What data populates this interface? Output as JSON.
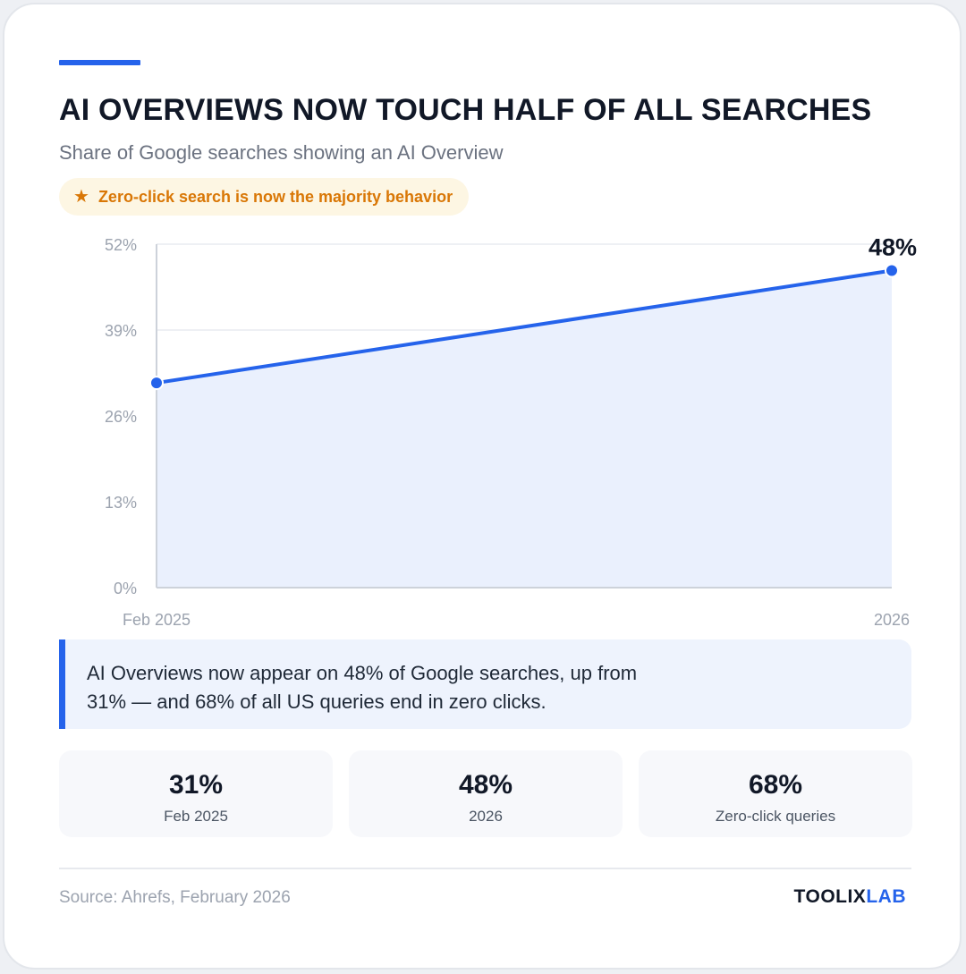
{
  "header": {
    "title": "AI OVERVIEWS NOW TOUCH HALF OF ALL SEARCHES",
    "subtitle": "Share of Google searches showing an AI Overview",
    "highlight": "Zero-click search is now the majority behavior",
    "highlight_icon": "star-icon"
  },
  "chart_data": {
    "type": "area",
    "x": [
      "Feb 2025",
      "2026"
    ],
    "values": [
      31,
      48
    ],
    "ylim": [
      0,
      52
    ],
    "yticks": [
      0,
      13,
      26,
      39,
      52
    ],
    "ytick_labels": [
      "0%",
      "13%",
      "26%",
      "39%",
      "52%"
    ],
    "data_labels": [
      "",
      "48%"
    ],
    "grid": true,
    "title": "",
    "xlabel": "",
    "ylabel": "",
    "line_color": "#2563eb",
    "fill_color": "#eaf0fd"
  },
  "insight": {
    "text": "AI Overviews now appear on 48% of Google searches, up from 31% — and 68% of all US queries end in zero clicks."
  },
  "stats": [
    {
      "value": "31%",
      "label": "Feb 2025"
    },
    {
      "value": "48%",
      "label": "2026"
    },
    {
      "value": "68%",
      "label": "Zero-click queries"
    }
  ],
  "footer": {
    "source": "Source: Ahrefs, February 2026",
    "brand_part1": "TOOLIX",
    "brand_part2": "LAB"
  },
  "colors": {
    "accent": "#2563eb",
    "highlight": "#d97706"
  }
}
